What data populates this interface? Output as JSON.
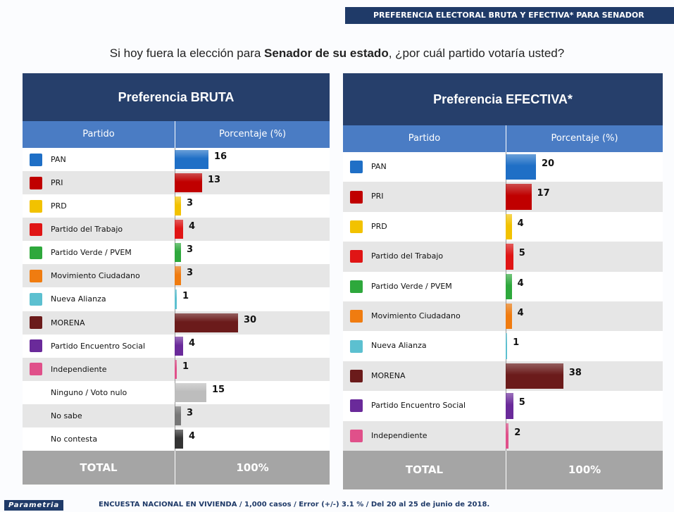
{
  "header": {
    "title": "PREFERENCIA ELECTORAL BRUTA Y EFECTIVA* PARA SENADOR"
  },
  "question": {
    "before": "Si hoy fuera la elección para ",
    "bold": "Senador de su estado",
    "after": ", ¿por cuál partido votaría usted?"
  },
  "tables": [
    {
      "title": "Preferencia BRUTA",
      "columns": [
        "Partido",
        "Porcentaje (%)"
      ],
      "rows": [
        {
          "party": "PAN",
          "value": 16,
          "color": "#1f6fc6"
        },
        {
          "party": "PRI",
          "value": 13,
          "color": "#c00000"
        },
        {
          "party": "PRD",
          "value": 3,
          "color": "#f2c200"
        },
        {
          "party": "Partido del Trabajo",
          "value": 4,
          "color": "#e01515"
        },
        {
          "party": "Partido Verde / PVEM",
          "value": 3,
          "color": "#2ea83c"
        },
        {
          "party": "Movimiento Ciudadano",
          "value": 3,
          "color": "#f07c10"
        },
        {
          "party": "Nueva Alianza",
          "value": 1,
          "color": "#5cc0d0"
        },
        {
          "party": "MORENA",
          "value": 30,
          "color": "#6b1b1b"
        },
        {
          "party": "Partido Encuentro Social",
          "value": 4,
          "color": "#6a2a9a"
        },
        {
          "party": "Independiente",
          "value": 1,
          "color": "#e0508a"
        },
        {
          "party": "Ninguno / Voto nulo",
          "value": 15,
          "color": "#bdbdbd"
        },
        {
          "party": "No sabe",
          "value": 3,
          "color": "#777777"
        },
        {
          "party": "No contesta",
          "value": 4,
          "color": "#333333"
        }
      ],
      "total": {
        "label": "TOTAL",
        "value": "100%"
      }
    },
    {
      "title": "Preferencia EFECTIVA*",
      "columns": [
        "Partido",
        "Porcentaje (%)"
      ],
      "rows": [
        {
          "party": "PAN",
          "value": 20,
          "color": "#1f6fc6"
        },
        {
          "party": "PRI",
          "value": 17,
          "color": "#c00000"
        },
        {
          "party": "PRD",
          "value": 4,
          "color": "#f2c200"
        },
        {
          "party": "Partido del Trabajo",
          "value": 5,
          "color": "#e01515"
        },
        {
          "party": "Partido Verde / PVEM",
          "value": 4,
          "color": "#2ea83c"
        },
        {
          "party": "Movimiento Ciudadano",
          "value": 4,
          "color": "#f07c10"
        },
        {
          "party": "Nueva Alianza",
          "value": 1,
          "color": "#5cc0d0"
        },
        {
          "party": "MORENA",
          "value": 38,
          "color": "#6b1b1b"
        },
        {
          "party": "Partido Encuentro Social",
          "value": 5,
          "color": "#6a2a9a"
        },
        {
          "party": "Independiente",
          "value": 2,
          "color": "#e0508a"
        }
      ],
      "total": {
        "label": "TOTAL",
        "value": "100%"
      }
    }
  ],
  "footer": {
    "brand": "Parametria",
    "text": "ENCUESTA NACIONAL EN VIVIENDA / 1,000 casos / Error (+/-) 3.1 % / Del 20 al 25 de junio de 2018."
  }
}
